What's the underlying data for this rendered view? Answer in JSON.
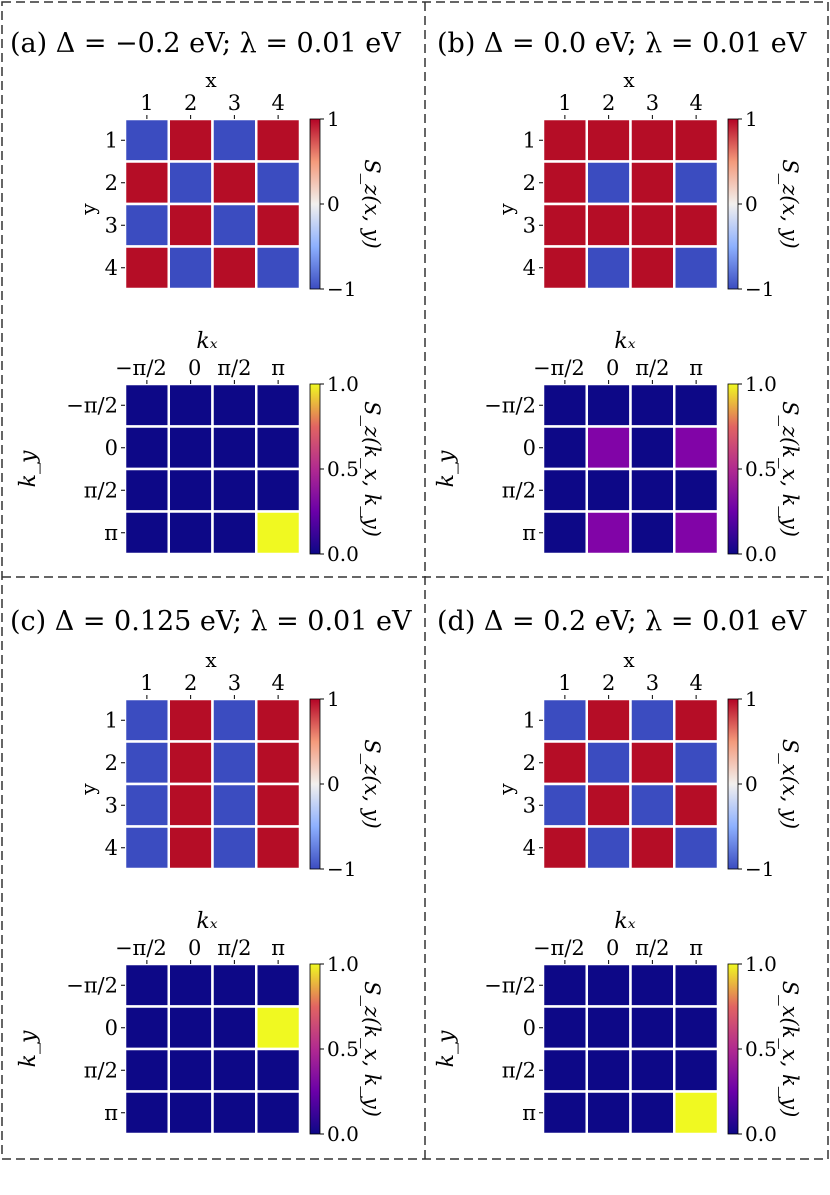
{
  "panel_titles": {
    "a": "(a) Δ = −0.2 eV; λ = 0.01 eV",
    "b": "(b) Δ = 0.0 eV; λ = 0.01 eV",
    "c": "(c) Δ = 0.125 eV; λ = 0.01 eV",
    "d": "(d) Δ = 0.2 eV; λ = 0.01 eV"
  },
  "real_axis": {
    "xlabel": "x",
    "ylabel": "y",
    "x_ticks": [
      "1",
      "2",
      "3",
      "4"
    ],
    "y_ticks": [
      "1",
      "2",
      "3",
      "4"
    ],
    "cbar_ticks": [
      "1",
      "0",
      "−1"
    ],
    "cbar_range": [
      -1,
      1
    ]
  },
  "k_axis": {
    "xlabel": "kₓ",
    "ylabel": "k_y",
    "x_ticks": [
      "−π/2",
      "0",
      "π/2",
      "π"
    ],
    "y_ticks": [
      "−π/2",
      "0",
      "π/2",
      "π"
    ],
    "cbar_ticks": [
      "1.0",
      "0.5",
      "0.0"
    ],
    "cbar_range": [
      0,
      1
    ]
  },
  "chart_data": [
    {
      "type": "heatmap",
      "panel": "a-real",
      "title": "(a) Δ = −0.2 eV; λ = 0.01 eV",
      "xlabel": "x",
      "ylabel": "y",
      "x": [
        "1",
        "2",
        "3",
        "4"
      ],
      "y": [
        "1",
        "2",
        "3",
        "4"
      ],
      "values": [
        [
          -1,
          1,
          -1,
          1
        ],
        [
          1,
          -1,
          1,
          -1
        ],
        [
          -1,
          1,
          -1,
          1
        ],
        [
          1,
          -1,
          1,
          -1
        ]
      ],
      "colorbar_label": "S_z(x, y)",
      "vmin": -1,
      "vmax": 1
    },
    {
      "type": "heatmap",
      "panel": "a-k",
      "xlabel": "k_x",
      "ylabel": "k_y",
      "x": [
        "−π/2",
        "0",
        "π/2",
        "π"
      ],
      "y": [
        "−π/2",
        "0",
        "π/2",
        "π"
      ],
      "values": [
        [
          0,
          0,
          0,
          0
        ],
        [
          0,
          0,
          0,
          0
        ],
        [
          0,
          0,
          0,
          0
        ],
        [
          0,
          0,
          0,
          1
        ]
      ],
      "colorbar_label": "S_z(k_x, k_y)",
      "vmin": 0,
      "vmax": 1
    },
    {
      "type": "heatmap",
      "panel": "b-real",
      "title": "(b) Δ = 0.0 eV; λ = 0.01 eV",
      "xlabel": "x",
      "ylabel": "y",
      "x": [
        "1",
        "2",
        "3",
        "4"
      ],
      "y": [
        "1",
        "2",
        "3",
        "4"
      ],
      "values": [
        [
          1,
          1,
          1,
          1
        ],
        [
          1,
          -1,
          1,
          -1
        ],
        [
          1,
          1,
          1,
          1
        ],
        [
          1,
          -1,
          1,
          -1
        ]
      ],
      "colorbar_label": "S_z(x, y)",
      "vmin": -1,
      "vmax": 1
    },
    {
      "type": "heatmap",
      "panel": "b-k",
      "xlabel": "k_x",
      "ylabel": "k_y",
      "x": [
        "−π/2",
        "0",
        "π/2",
        "π"
      ],
      "y": [
        "−π/2",
        "0",
        "π/2",
        "π"
      ],
      "values": [
        [
          0,
          0,
          0,
          0
        ],
        [
          0,
          0.25,
          0,
          0.25
        ],
        [
          0,
          0,
          0,
          0
        ],
        [
          0,
          0.25,
          0,
          0.25
        ]
      ],
      "colorbar_label": "S_z(k_x, k_y)",
      "vmin": 0,
      "vmax": 1
    },
    {
      "type": "heatmap",
      "panel": "c-real",
      "title": "(c) Δ = 0.125 eV; λ = 0.01 eV",
      "xlabel": "x",
      "ylabel": "y",
      "x": [
        "1",
        "2",
        "3",
        "4"
      ],
      "y": [
        "1",
        "2",
        "3",
        "4"
      ],
      "values": [
        [
          -1,
          1,
          -1,
          1
        ],
        [
          -1,
          1,
          -1,
          1
        ],
        [
          -1,
          1,
          -1,
          1
        ],
        [
          -1,
          1,
          -1,
          1
        ]
      ],
      "colorbar_label": "S_z(x, y)",
      "vmin": -1,
      "vmax": 1
    },
    {
      "type": "heatmap",
      "panel": "c-k",
      "xlabel": "k_x",
      "ylabel": "k_y",
      "x": [
        "−π/2",
        "0",
        "π/2",
        "π"
      ],
      "y": [
        "−π/2",
        "0",
        "π/2",
        "π"
      ],
      "values": [
        [
          0,
          0,
          0,
          0
        ],
        [
          0,
          0,
          0,
          1
        ],
        [
          0,
          0,
          0,
          0
        ],
        [
          0,
          0,
          0,
          0
        ]
      ],
      "colorbar_label": "S_z(k_x, k_y)",
      "vmin": 0,
      "vmax": 1
    },
    {
      "type": "heatmap",
      "panel": "d-real",
      "title": "(d) Δ = 0.2 eV; λ = 0.01 eV",
      "xlabel": "x",
      "ylabel": "y",
      "x": [
        "1",
        "2",
        "3",
        "4"
      ],
      "y": [
        "1",
        "2",
        "3",
        "4"
      ],
      "values": [
        [
          -1,
          1,
          -1,
          1
        ],
        [
          1,
          -1,
          1,
          -1
        ],
        [
          -1,
          1,
          -1,
          1
        ],
        [
          1,
          -1,
          1,
          -1
        ]
      ],
      "colorbar_label": "S_x(x, y)",
      "vmin": -1,
      "vmax": 1
    },
    {
      "type": "heatmap",
      "panel": "d-k",
      "xlabel": "k_x",
      "ylabel": "k_y",
      "x": [
        "−π/2",
        "0",
        "π/2",
        "π"
      ],
      "y": [
        "−π/2",
        "0",
        "π/2",
        "π"
      ],
      "values": [
        [
          0,
          0,
          0,
          0
        ],
        [
          0,
          0,
          0,
          0
        ],
        [
          0,
          0,
          0,
          0
        ],
        [
          0,
          0,
          0,
          1
        ]
      ],
      "colorbar_label": "S_x(k_x, k_y)",
      "vmin": 0,
      "vmax": 1
    }
  ],
  "colors": {
    "spin_up": "#b50d26",
    "spin_down": "#3b4cc0",
    "k_low": "#0d0887",
    "k_mid": "#8104a7",
    "k_high": "#f0f921",
    "grid_line": "#ffffff",
    "frame": "#333333"
  }
}
